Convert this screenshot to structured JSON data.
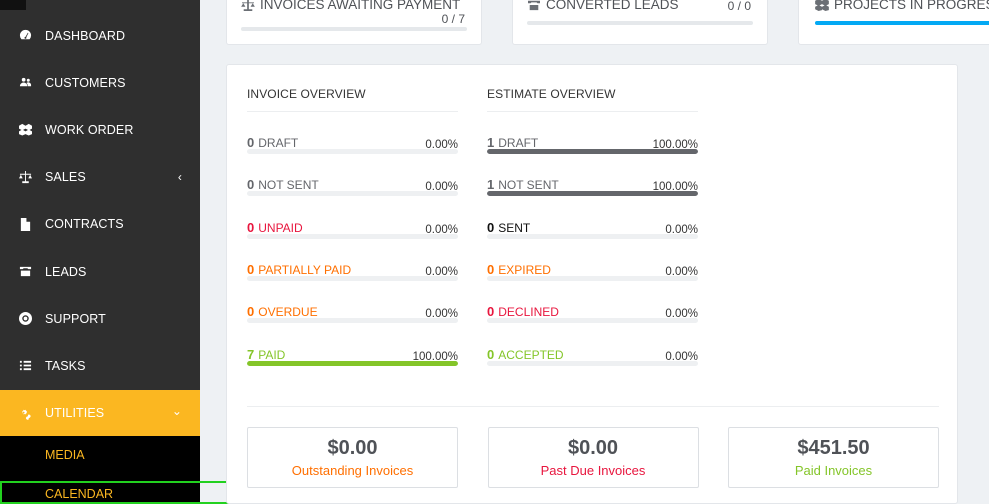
{
  "colors": {
    "sidebar_bg": "#2f2f2f",
    "accent": "#fbb721",
    "danger": "#e8163e",
    "warning": "#ff6f00",
    "success": "#84c529",
    "draft": "#64666b",
    "info": "#03a9f4"
  },
  "sidebar": {
    "items": [
      {
        "label": "DASHBOARD",
        "icon": "dashboard-icon"
      },
      {
        "label": "CUSTOMERS",
        "icon": "users-icon"
      },
      {
        "label": "WORK ORDER",
        "icon": "cubes-icon"
      },
      {
        "label": "SALES",
        "icon": "balance-scale-icon",
        "chevron": "‹"
      },
      {
        "label": "CONTRACTS",
        "icon": "file-icon"
      },
      {
        "label": "LEADS",
        "icon": "tty-icon"
      },
      {
        "label": "SUPPORT",
        "icon": "life-ring-icon"
      },
      {
        "label": "TASKS",
        "icon": "tasks-icon"
      },
      {
        "label": "UTILITIES",
        "icon": "cogs-icon",
        "chevron": "⌄",
        "active": true
      }
    ],
    "submenu": [
      "MEDIA",
      "CALENDAR"
    ]
  },
  "top_cards": {
    "invoices_awaiting": {
      "title": "INVOICES AWAITING PAYMENT",
      "value": "0 / 7",
      "progress": 0
    },
    "converted_leads": {
      "title": "CONVERTED LEADS",
      "value": "0 / 0",
      "progress": 0
    },
    "projects_in_progress": {
      "title": "PROJECTS IN PROGRESS"
    }
  },
  "invoice_overview": {
    "title": "INVOICE OVERVIEW",
    "rows": [
      {
        "count": "0",
        "label": "DRAFT",
        "percent": "0.00%",
        "fraction": 0,
        "color": "#64666b"
      },
      {
        "count": "0",
        "label": "NOT SENT",
        "percent": "0.00%",
        "fraction": 0,
        "color": "#64666b"
      },
      {
        "count": "0",
        "label": "UNPAID",
        "percent": "0.00%",
        "fraction": 0,
        "color": "#e8163e"
      },
      {
        "count": "0",
        "label": "PARTIALLY PAID",
        "percent": "0.00%",
        "fraction": 0,
        "color": "#ff6f00"
      },
      {
        "count": "0",
        "label": "OVERDUE",
        "percent": "0.00%",
        "fraction": 0,
        "color": "#ff6f00"
      },
      {
        "count": "7",
        "label": "PAID",
        "percent": "100.00%",
        "fraction": 1,
        "color": "#84c529"
      }
    ]
  },
  "estimate_overview": {
    "title": "ESTIMATE OVERVIEW",
    "rows": [
      {
        "count": "1",
        "label": "DRAFT",
        "percent": "100.00%",
        "fraction": 1,
        "color": "#64666b"
      },
      {
        "count": "1",
        "label": "NOT SENT",
        "percent": "100.00%",
        "fraction": 1,
        "color": "#64666b"
      },
      {
        "count": "0",
        "label": "SENT",
        "percent": "0.00%",
        "fraction": 0,
        "color": "#111111"
      },
      {
        "count": "0",
        "label": "EXPIRED",
        "percent": "0.00%",
        "fraction": 0,
        "color": "#ff6f00"
      },
      {
        "count": "0",
        "label": "DECLINED",
        "percent": "0.00%",
        "fraction": 0,
        "color": "#e8163e"
      },
      {
        "count": "0",
        "label": "ACCEPTED",
        "percent": "0.00%",
        "fraction": 0,
        "color": "#84c529"
      }
    ]
  },
  "summary": [
    {
      "amount": "$0.00",
      "label": "Outstanding Invoices",
      "color": "#ff6f00"
    },
    {
      "amount": "$0.00",
      "label": "Past Due Invoices",
      "color": "#e8163e"
    },
    {
      "amount": "$451.50",
      "label": "Paid Invoices",
      "color": "#84c529"
    }
  ]
}
